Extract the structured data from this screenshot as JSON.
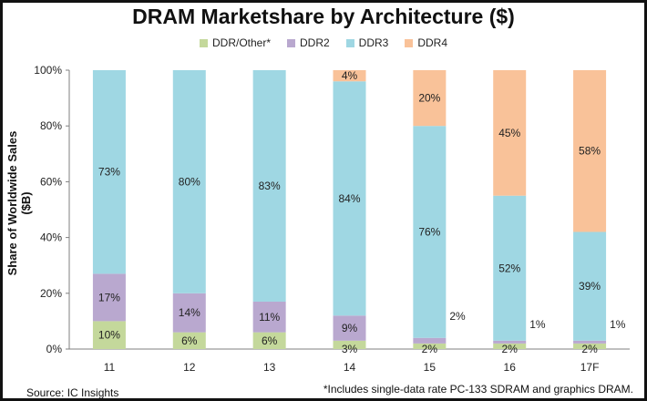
{
  "chart_data": {
    "type": "bar",
    "stacked": true,
    "title": "DRAM Marketshare by Architecture ($)",
    "xlabel": "",
    "ylabel": "Share of Worldwide Sales ($B)",
    "ylim": [
      0,
      100
    ],
    "yticks": [
      "0%",
      "20%",
      "40%",
      "60%",
      "80%",
      "100%"
    ],
    "categories": [
      "11",
      "12",
      "13",
      "14",
      "15",
      "16",
      "17F"
    ],
    "series": [
      {
        "name": "DDR/Other*",
        "color": "#c4d89b",
        "values": [
          10,
          6,
          6,
          3,
          2,
          2,
          2
        ],
        "labels": [
          "10%",
          "6%",
          "6%",
          "3%",
          "2%",
          "2%",
          "2%"
        ]
      },
      {
        "name": "DDR2",
        "color": "#b9a8cf",
        "values": [
          17,
          14,
          11,
          9,
          2,
          1,
          1
        ],
        "labels": [
          "17%",
          "14%",
          "11%",
          "9%",
          "2%",
          "1%",
          "1%"
        ]
      },
      {
        "name": "DDR3",
        "color": "#9fd7e3",
        "values": [
          73,
          80,
          83,
          84,
          76,
          52,
          39
        ],
        "labels": [
          "73%",
          "80%",
          "83%",
          "84%",
          "76%",
          "52%",
          "39%"
        ]
      },
      {
        "name": "DDR4",
        "color": "#f9c299",
        "values": [
          0,
          0,
          0,
          4,
          20,
          45,
          58
        ],
        "labels": [
          "",
          "",
          "",
          "4%",
          "20%",
          "45%",
          "58%"
        ]
      }
    ],
    "grid": false,
    "legend_position": "top"
  },
  "source": "Source:  IC Insights",
  "footnote": "*Includes single-data rate PC-133 SDRAM and graphics DRAM."
}
